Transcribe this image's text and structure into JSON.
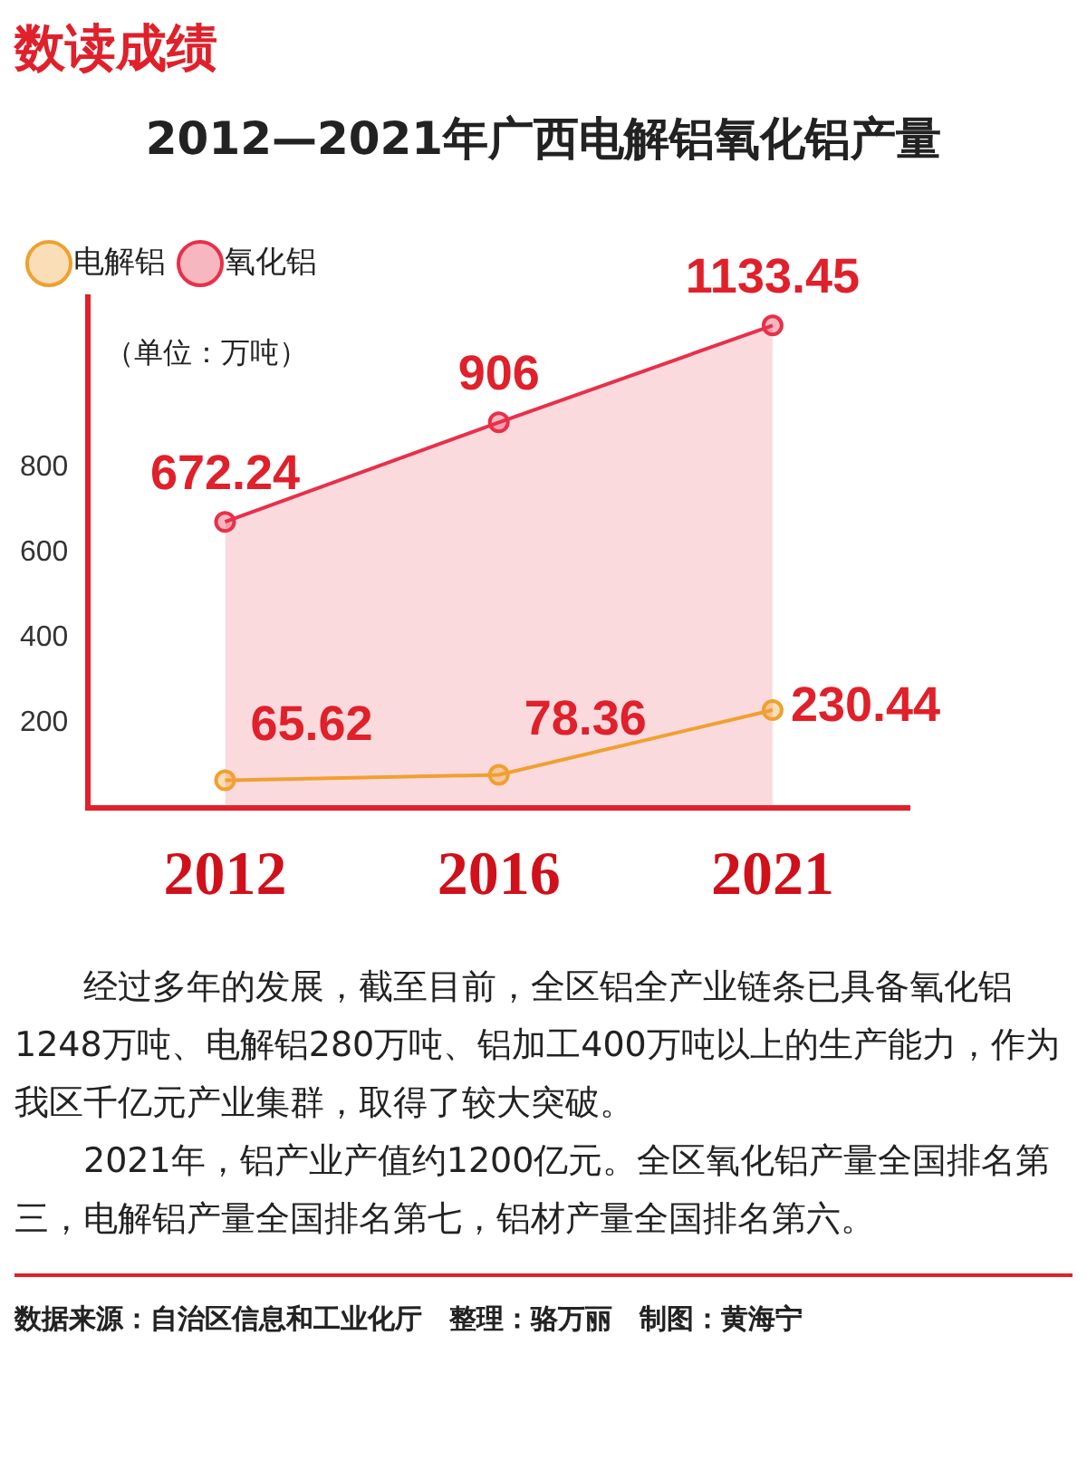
{
  "chart_data": {
    "type": "line",
    "title": "2012—2021年广西电解铝氧化铝产量",
    "ylabel": "（单位：万吨）",
    "categories": [
      "2012",
      "2016",
      "2021"
    ],
    "series": [
      {
        "name": "电解铝",
        "type": "line",
        "color": "#f0a030",
        "values": [
          65.62,
          78.36,
          230.44
        ]
      },
      {
        "name": "氧化铝",
        "type": "area",
        "color": "#e8304a",
        "values": [
          672.24,
          906,
          1133.45
        ]
      }
    ],
    "ylim": [
      0,
      1200
    ],
    "yticks": [
      200,
      400,
      600,
      800
    ],
    "grid": false,
    "legend": "top left",
    "marker": "circle",
    "data_labels": true,
    "annotations": [
      "数读成绩",
      "经过多年的发展，截至目前，全区铝全产业链条已具备氧化铝1248万吨、电解铝280万吨、铝加工400万吨以上的生产能力，作为我区千亿元产业集群，取得了较大突破。",
      "2021年，铝产业产值约1200亿元。全区氧化铝产量全国排名第三，电解铝产量全国排名第七，铝材产量全国排名第六。",
      "数据来源：自治区信息和工业化厅　整理：骆万丽　制图：黄海宁"
    ]
  }
}
